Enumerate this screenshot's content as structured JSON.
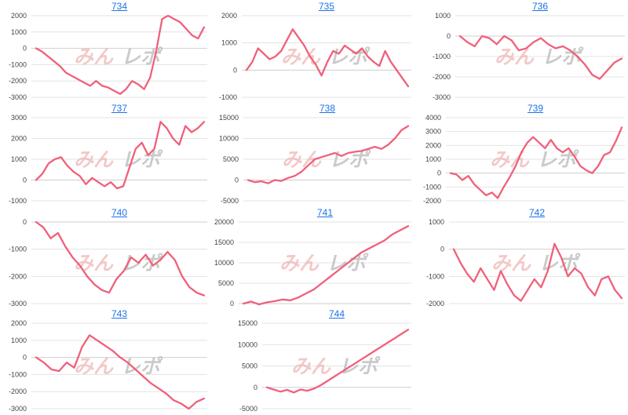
{
  "colors": {
    "series": "#f0607a",
    "title_link": "#1a73e8"
  },
  "watermark": {
    "part1": "みん",
    "part2": "レポ"
  },
  "chart_data": [
    {
      "type": "line",
      "title": "734",
      "ylim": [
        -3000,
        2000
      ],
      "yticks": [
        2000,
        1000,
        0,
        -1000,
        -2000,
        -3000
      ],
      "series": [
        {
          "values": [
            0,
            -200,
            -500,
            -800,
            -1100,
            -1500,
            -1700,
            -1900,
            -2100,
            -2300,
            -2000,
            -2300,
            -2400,
            -2600,
            -2800,
            -2500,
            -2000,
            -2200,
            -2500,
            -1800,
            -200,
            1800,
            2000,
            1800,
            1600,
            1200,
            800,
            600,
            1300
          ]
        }
      ]
    },
    {
      "type": "line",
      "title": "735",
      "ylim": [
        -1000,
        2000
      ],
      "yticks": [
        2000,
        1000,
        0,
        -1000
      ],
      "series": [
        {
          "values": [
            0,
            300,
            800,
            600,
            400,
            500,
            700,
            1100,
            1500,
            1200,
            900,
            500,
            200,
            -200,
            300,
            700,
            600,
            900,
            750,
            600,
            800,
            500,
            300,
            150,
            700,
            300,
            0,
            -300,
            -600
          ]
        }
      ]
    },
    {
      "type": "line",
      "title": "736",
      "ylim": [
        -3000,
        1000
      ],
      "yticks": [
        1000,
        0,
        -1000,
        -2000,
        -3000
      ],
      "series": [
        {
          "values": [
            0,
            -300,
            -500,
            0,
            -100,
            -400,
            0,
            -200,
            -700,
            -600,
            -300,
            -100,
            -400,
            -600,
            -500,
            -700,
            -1000,
            -1400,
            -1900,
            -2100,
            -1700,
            -1300,
            -1100
          ]
        }
      ]
    },
    {
      "type": "line",
      "title": "737",
      "ylim": [
        -1000,
        3000
      ],
      "yticks": [
        3000,
        2000,
        1000,
        0,
        -1000
      ],
      "series": [
        {
          "values": [
            0,
            300,
            800,
            1000,
            1100,
            700,
            400,
            200,
            -200,
            100,
            -100,
            -300,
            -100,
            -400,
            -300,
            600,
            1500,
            1800,
            1200,
            1500,
            2800,
            2500,
            2000,
            1700,
            2600,
            2300,
            2500,
            2800
          ]
        }
      ]
    },
    {
      "type": "line",
      "title": "738",
      "ylim": [
        -5000,
        15000
      ],
      "yticks": [
        15000,
        10000,
        5000,
        0,
        -5000
      ],
      "series": [
        {
          "values": [
            0,
            -500,
            -300,
            -800,
            0,
            -200,
            500,
            1000,
            2000,
            3500,
            5000,
            5500,
            6000,
            6500,
            5800,
            6500,
            6800,
            7000,
            7500,
            8000,
            7500,
            8500,
            10000,
            12000,
            13000
          ]
        }
      ]
    },
    {
      "type": "line",
      "title": "739",
      "ylim": [
        -2000,
        4000
      ],
      "yticks": [
        4000,
        3000,
        2000,
        1000,
        0,
        -1000,
        -2000
      ],
      "series": [
        {
          "values": [
            0,
            -100,
            -500,
            -200,
            -800,
            -1200,
            -1600,
            -1400,
            -1800,
            -1000,
            -300,
            500,
            1500,
            2200,
            2600,
            2200,
            1800,
            2400,
            1800,
            1500,
            1800,
            1200,
            500,
            200,
            0,
            500,
            1300,
            1500,
            2300,
            3300
          ]
        }
      ]
    },
    {
      "type": "line",
      "title": "740",
      "ylim": [
        -3000,
        0
      ],
      "yticks": [
        0,
        -1000,
        -2000,
        -3000
      ],
      "series": [
        {
          "values": [
            0,
            -200,
            -600,
            -400,
            -900,
            -1300,
            -1600,
            -2000,
            -2300,
            -2500,
            -2600,
            -2100,
            -1800,
            -1300,
            -1500,
            -1200,
            -1600,
            -1400,
            -1100,
            -1400,
            -2000,
            -2400,
            -2600,
            -2700
          ]
        }
      ]
    },
    {
      "type": "line",
      "title": "741",
      "ylim": [
        0,
        20000
      ],
      "yticks": [
        20000,
        15000,
        10000,
        5000,
        0
      ],
      "series": [
        {
          "values": [
            0,
            500,
            -200,
            300,
            600,
            1000,
            800,
            1500,
            2500,
            3500,
            5000,
            6500,
            8000,
            9500,
            11000,
            12500,
            13500,
            14500,
            15500,
            17000,
            18000,
            19000
          ]
        }
      ]
    },
    {
      "type": "line",
      "title": "742",
      "ylim": [
        -2000,
        1000
      ],
      "yticks": [
        1000,
        0,
        -1000,
        -2000
      ],
      "series": [
        {
          "values": [
            0,
            -500,
            -900,
            -1200,
            -700,
            -1100,
            -1500,
            -800,
            -1300,
            -1700,
            -1900,
            -1500,
            -1100,
            -1400,
            -800,
            200,
            -300,
            -1000,
            -700,
            -900,
            -1400,
            -1700,
            -1100,
            -1000,
            -1500,
            -1800
          ]
        }
      ]
    },
    {
      "type": "line",
      "title": "743",
      "ylim": [
        -3000,
        2000
      ],
      "yticks": [
        2000,
        1000,
        0,
        -1000,
        -2000,
        -3000
      ],
      "series": [
        {
          "values": [
            0,
            -300,
            -700,
            -800,
            -300,
            -600,
            600,
            1300,
            1000,
            700,
            400,
            0,
            -300,
            -700,
            -1100,
            -1500,
            -1800,
            -2100,
            -2500,
            -2700,
            -3000,
            -2600,
            -2400
          ]
        }
      ]
    },
    {
      "type": "line",
      "title": "744",
      "ylim": [
        -5000,
        15000
      ],
      "yticks": [
        15000,
        10000,
        5000,
        0,
        -5000
      ],
      "series": [
        {
          "values": [
            0,
            -500,
            -1000,
            -600,
            -1200,
            -500,
            -800,
            -300,
            500,
            1500,
            2500,
            3500,
            4500,
            5500,
            6500,
            7500,
            8500,
            9500,
            10500,
            11500,
            12500,
            13500
          ]
        }
      ]
    }
  ]
}
